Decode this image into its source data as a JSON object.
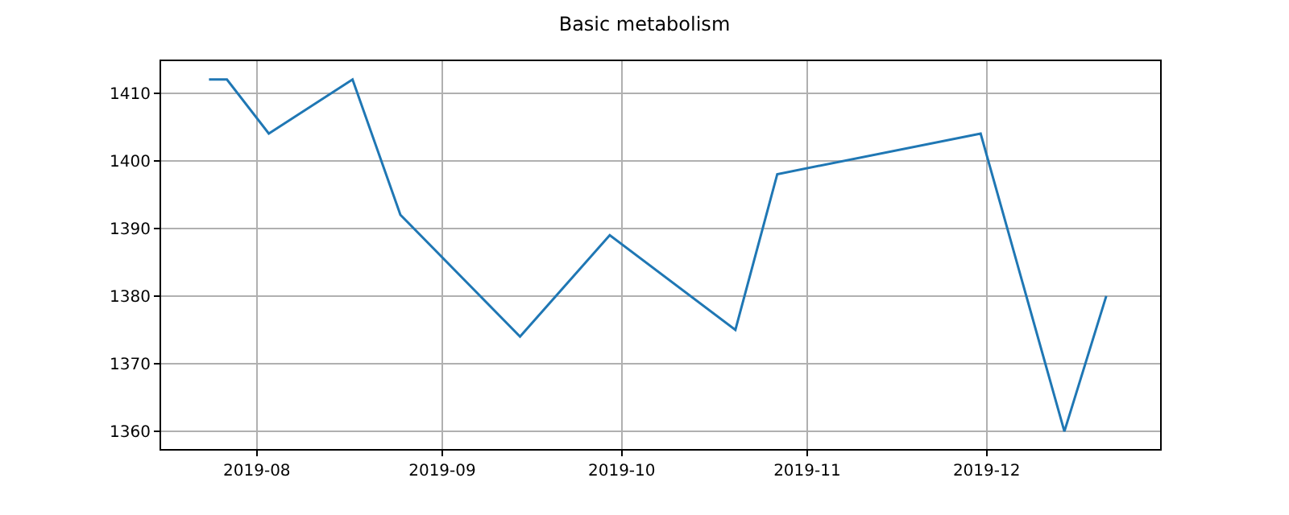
{
  "chart_data": {
    "type": "line",
    "title": "Basic metabolism",
    "x": [
      "2019-07-24",
      "2019-07-27",
      "2019-08-03",
      "2019-08-17",
      "2019-08-25",
      "2019-09-14",
      "2019-09-29",
      "2019-10-20",
      "2019-10-27",
      "2019-11-30",
      "2019-12-14",
      "2019-12-21"
    ],
    "series": [
      {
        "color": "#1f77b4",
        "values": [
          1412,
          1412,
          1404,
          1412,
          1392,
          1374,
          1389,
          1375,
          1398,
          1404,
          1360,
          1380
        ]
      }
    ],
    "xlim": [
      "2019-07-16",
      "2019-12-30"
    ],
    "xticks": [
      {
        "value": "2019-08-01",
        "label": "2019-08"
      },
      {
        "value": "2019-09-01",
        "label": "2019-09"
      },
      {
        "value": "2019-10-01",
        "label": "2019-10"
      },
      {
        "value": "2019-11-01",
        "label": "2019-11"
      },
      {
        "value": "2019-12-01",
        "label": "2019-12"
      }
    ],
    "ylim": [
      1357.4,
      1414.7
    ],
    "yticks": [
      1360,
      1370,
      1380,
      1390,
      1400,
      1410
    ],
    "grid": true,
    "marker": "none",
    "line_style": "solid"
  }
}
